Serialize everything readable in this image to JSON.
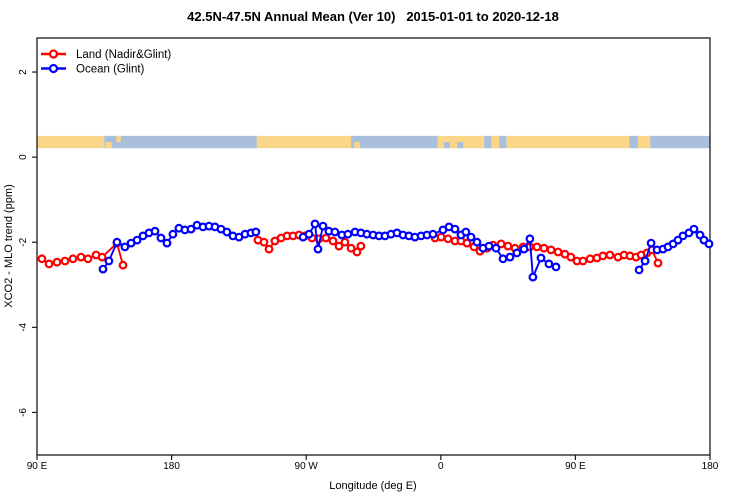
{
  "title": "42.5N-47.5N Annual Mean (Ver 10)   2015-01-01 to 2020-12-18",
  "chart_data": {
    "type": "line",
    "title": "42.5N-47.5N Annual Mean (Ver 10)   2015-01-01 to 2020-12-18",
    "xlabel": "Longitude (deg E)",
    "ylabel": "XCO2 - MLO trend (ppm)",
    "xlim": [
      90,
      540
    ],
    "ylim": [
      -7,
      2.8
    ],
    "grid": false,
    "legend_position": "top-left",
    "x_ticks": [
      {
        "value": 90,
        "label": "90 E"
      },
      {
        "value": 180,
        "label": "180"
      },
      {
        "value": 270,
        "label": "90 W"
      },
      {
        "value": 360,
        "label": "0"
      },
      {
        "value": 450,
        "label": "90 E"
      },
      {
        "value": 540,
        "label": "180"
      }
    ],
    "y_ticks": [
      {
        "value": 2,
        "label": "2"
      },
      {
        "value": 0,
        "label": "0"
      },
      {
        "value": -2,
        "label": "-2"
      },
      {
        "value": -4,
        "label": "-4"
      },
      {
        "value": -6,
        "label": "-6"
      }
    ],
    "map_strip": {
      "value_range": [
        0.21,
        0.5
      ],
      "land_color": "#FBD689",
      "ocean_color": "#A9BFDC",
      "segments": [
        {
          "from": 90,
          "to": 135,
          "type": "land"
        },
        {
          "from": 135,
          "to": 237,
          "type": "ocean"
        },
        {
          "from": 237,
          "to": 300,
          "type": "land"
        },
        {
          "from": 300,
          "to": 358,
          "type": "ocean"
        },
        {
          "from": 358,
          "to": 389,
          "type": "land"
        },
        {
          "from": 389,
          "to": 394,
          "type": "ocean"
        },
        {
          "from": 394,
          "to": 399,
          "type": "land"
        },
        {
          "from": 399,
          "to": 404,
          "type": "ocean"
        },
        {
          "from": 404,
          "to": 486,
          "type": "land"
        },
        {
          "from": 486,
          "to": 492,
          "type": "ocean"
        },
        {
          "from": 492,
          "to": 500,
          "type": "land"
        },
        {
          "from": 500,
          "to": 540,
          "type": "ocean"
        }
      ],
      "patches": [
        {
          "from": 135.5,
          "to": 140,
          "type": "land",
          "align": "bottom"
        },
        {
          "from": 143,
          "to": 146,
          "type": "land",
          "align": "top"
        },
        {
          "from": 302,
          "to": 306,
          "type": "land",
          "align": "bottom"
        },
        {
          "from": 362,
          "to": 366,
          "type": "ocean",
          "align": "bottom"
        },
        {
          "from": 371,
          "to": 375,
          "type": "ocean",
          "align": "bottom"
        }
      ]
    },
    "series": [
      {
        "name": "Land (Nadir&Glint)",
        "color": "#FF0000",
        "segments": [
          [
            [
              93.3,
              -2.39
            ],
            [
              98.0,
              -2.51
            ],
            [
              103.4,
              -2.47
            ],
            [
              108.7,
              -2.44
            ],
            [
              114.1,
              -2.39
            ],
            [
              119.4,
              -2.35
            ],
            [
              124.1,
              -2.39
            ],
            [
              129.5,
              -2.3
            ],
            [
              133.5,
              -2.35
            ],
            [
              143.5,
              -2.02
            ],
            [
              147.5,
              -2.54
            ]
          ],
          [
            [
              237.8,
              -1.95
            ],
            [
              241.8,
              -2.0
            ],
            [
              245.1,
              -2.16
            ],
            [
              249.1,
              -1.97
            ],
            [
              253.2,
              -1.9
            ],
            [
              257.2,
              -1.85
            ],
            [
              261.2,
              -1.85
            ],
            [
              265.2,
              -1.83
            ],
            [
              269.2,
              -1.85
            ],
            [
              273.9,
              -1.9
            ],
            [
              278.6,
              -1.92
            ],
            [
              283.2,
              -1.9
            ],
            [
              287.9,
              -1.97
            ],
            [
              291.9,
              -2.09
            ],
            [
              295.9,
              -2.0
            ],
            [
              300.0,
              -2.14
            ],
            [
              304.0,
              -2.23
            ],
            [
              306.6,
              -2.09
            ]
          ],
          [
            [
              356.1,
              -1.9
            ],
            [
              360.2,
              -1.88
            ],
            [
              364.8,
              -1.92
            ],
            [
              369.5,
              -1.97
            ],
            [
              373.5,
              -1.97
            ],
            [
              377.5,
              -2.02
            ],
            [
              382.2,
              -2.11
            ],
            [
              386.2,
              -2.21
            ],
            [
              390.9,
              -2.14
            ],
            [
              394.9,
              -2.07
            ],
            [
              400.3,
              -2.04
            ],
            [
              404.9,
              -2.09
            ],
            [
              409.6,
              -2.14
            ],
            [
              415.0,
              -2.11
            ],
            [
              419.6,
              -2.11
            ],
            [
              424.3,
              -2.11
            ],
            [
              429.0,
              -2.14
            ],
            [
              433.7,
              -2.18
            ],
            [
              438.4,
              -2.23
            ],
            [
              443.0,
              -2.28
            ],
            [
              447.0,
              -2.35
            ],
            [
              451.1,
              -2.44
            ],
            [
              455.1,
              -2.44
            ],
            [
              459.8,
              -2.39
            ],
            [
              464.4,
              -2.37
            ],
            [
              468.4,
              -2.32
            ],
            [
              473.1,
              -2.3
            ],
            [
              478.5,
              -2.35
            ],
            [
              482.5,
              -2.3
            ],
            [
              486.5,
              -2.32
            ],
            [
              490.5,
              -2.35
            ],
            [
              493.9,
              -2.3
            ],
            [
              497.9,
              -2.25
            ],
            [
              501.2,
              -2.18
            ],
            [
              505.2,
              -2.49
            ]
          ]
        ]
      },
      {
        "name": "Ocean (Glint)",
        "color": "#0000FF",
        "segments": [
          [
            [
              134.1,
              -2.63
            ],
            [
              138.1,
              -2.44
            ],
            [
              143.5,
              -2.0
            ],
            [
              148.8,
              -2.11
            ],
            [
              152.9,
              -2.02
            ],
            [
              156.9,
              -1.95
            ],
            [
              160.9,
              -1.85
            ],
            [
              164.9,
              -1.78
            ],
            [
              168.9,
              -1.74
            ],
            [
              172.9,
              -1.9
            ],
            [
              176.9,
              -2.02
            ],
            [
              180.9,
              -1.81
            ],
            [
              184.9,
              -1.67
            ],
            [
              188.9,
              -1.71
            ],
            [
              193.0,
              -1.69
            ],
            [
              197.0,
              -1.6
            ],
            [
              201.0,
              -1.64
            ],
            [
              205.0,
              -1.62
            ],
            [
              209.0,
              -1.64
            ],
            [
              213.0,
              -1.69
            ],
            [
              217.0,
              -1.76
            ],
            [
              221.0,
              -1.85
            ],
            [
              225.1,
              -1.88
            ],
            [
              229.1,
              -1.81
            ],
            [
              233.1,
              -1.78
            ],
            [
              236.4,
              -1.76
            ]
          ],
          [
            [
              267.9,
              -1.88
            ],
            [
              271.9,
              -1.81
            ],
            [
              275.9,
              -1.57
            ],
            [
              277.9,
              -2.16
            ],
            [
              281.2,
              -1.62
            ],
            [
              285.2,
              -1.74
            ],
            [
              289.2,
              -1.76
            ],
            [
              293.9,
              -1.83
            ],
            [
              297.9,
              -1.81
            ],
            [
              302.6,
              -1.76
            ],
            [
              306.6,
              -1.78
            ],
            [
              310.6,
              -1.81
            ],
            [
              314.7,
              -1.83
            ],
            [
              318.7,
              -1.85
            ],
            [
              322.7,
              -1.85
            ],
            [
              326.7,
              -1.81
            ],
            [
              330.7,
              -1.78
            ],
            [
              334.7,
              -1.83
            ],
            [
              338.7,
              -1.85
            ],
            [
              342.7,
              -1.88
            ],
            [
              346.8,
              -1.85
            ],
            [
              350.8,
              -1.83
            ],
            [
              354.8,
              -1.81
            ],
            [
              361.5,
              -1.71
            ],
            [
              365.5,
              -1.64
            ],
            [
              369.5,
              -1.69
            ],
            [
              373.5,
              -1.83
            ],
            [
              376.8,
              -1.76
            ],
            [
              380.2,
              -1.88
            ],
            [
              384.2,
              -2.0
            ],
            [
              388.2,
              -2.14
            ],
            [
              392.2,
              -2.09
            ],
            [
              396.9,
              -2.14
            ],
            [
              401.6,
              -2.39
            ],
            [
              406.3,
              -2.35
            ],
            [
              410.9,
              -2.25
            ],
            [
              415.6,
              -2.16
            ],
            [
              419.6,
              -1.92
            ],
            [
              421.6,
              -2.82
            ],
            [
              427.0,
              -2.37
            ],
            [
              432.3,
              -2.51
            ],
            [
              437.0,
              -2.58
            ]
          ],
          [
            [
              492.6,
              -2.65
            ],
            [
              496.6,
              -2.44
            ],
            [
              500.6,
              -2.02
            ],
            [
              504.6,
              -2.18
            ],
            [
              508.6,
              -2.16
            ],
            [
              511.9,
              -2.11
            ],
            [
              515.3,
              -2.04
            ],
            [
              518.6,
              -1.95
            ],
            [
              521.9,
              -1.85
            ],
            [
              525.9,
              -1.78
            ],
            [
              529.3,
              -1.69
            ],
            [
              533.3,
              -1.83
            ],
            [
              536.0,
              -1.95
            ],
            [
              539.3,
              -2.04
            ]
          ]
        ]
      }
    ],
    "legend": [
      {
        "label": "Land (Nadir&Glint)",
        "color": "#FF0000"
      },
      {
        "label": "Ocean (Glint)",
        "color": "#0000FF"
      }
    ]
  }
}
